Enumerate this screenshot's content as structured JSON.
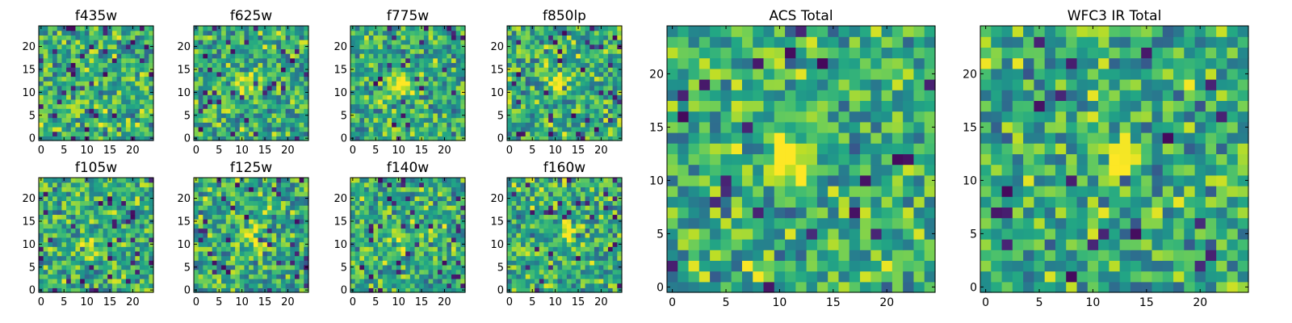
{
  "chart_data": [
    {
      "type": "heatmap",
      "title": "f435w",
      "colormap": "viridis",
      "grid_size": 25,
      "x_ticks": [
        0,
        5,
        10,
        15,
        20
      ],
      "y_ticks": [
        0,
        5,
        10,
        15,
        20
      ],
      "xlim": [
        0,
        24
      ],
      "ylim": [
        0,
        24
      ],
      "brightness_peak": {
        "x": 10,
        "y": 12,
        "amplitude": 0.12
      },
      "noise_seed": 11
    },
    {
      "type": "heatmap",
      "title": "f625w",
      "colormap": "viridis",
      "grid_size": 25,
      "x_ticks": [
        0,
        5,
        10,
        15,
        20
      ],
      "y_ticks": [
        0,
        5,
        10,
        15,
        20
      ],
      "xlim": [
        0,
        24
      ],
      "ylim": [
        0,
        24
      ],
      "brightness_peak": {
        "x": 11,
        "y": 12,
        "amplitude": 0.35
      },
      "noise_seed": 23
    },
    {
      "type": "heatmap",
      "title": "f775w",
      "colormap": "viridis",
      "grid_size": 25,
      "x_ticks": [
        0,
        5,
        10,
        15,
        20
      ],
      "y_ticks": [
        0,
        5,
        10,
        15,
        20
      ],
      "xlim": [
        0,
        24
      ],
      "ylim": [
        0,
        24
      ],
      "brightness_peak": {
        "x": 11,
        "y": 12,
        "amplitude": 0.45
      },
      "noise_seed": 37
    },
    {
      "type": "heatmap",
      "title": "f850lp",
      "colormap": "viridis",
      "grid_size": 25,
      "x_ticks": [
        0,
        5,
        10,
        15,
        20
      ],
      "y_ticks": [
        0,
        5,
        10,
        15,
        20
      ],
      "xlim": [
        0,
        24
      ],
      "ylim": [
        0,
        24
      ],
      "brightness_peak": {
        "x": 11,
        "y": 12,
        "amplitude": 0.35
      },
      "noise_seed": 41
    },
    {
      "type": "heatmap",
      "title": "f105w",
      "colormap": "viridis",
      "grid_size": 25,
      "x_ticks": [
        0,
        5,
        10,
        15,
        20
      ],
      "y_ticks": [
        0,
        5,
        10,
        15,
        20
      ],
      "xlim": [
        0,
        24
      ],
      "ylim": [
        0,
        24
      ],
      "brightness_peak": {
        "x": 10,
        "y": 9,
        "amplitude": 0.3
      },
      "noise_seed": 53
    },
    {
      "type": "heatmap",
      "title": "f125w",
      "colormap": "viridis",
      "grid_size": 25,
      "x_ticks": [
        0,
        5,
        10,
        15,
        20
      ],
      "y_ticks": [
        0,
        5,
        10,
        15,
        20
      ],
      "xlim": [
        0,
        24
      ],
      "ylim": [
        0,
        24
      ],
      "brightness_peak": {
        "x": 12,
        "y": 12,
        "amplitude": 0.35
      },
      "noise_seed": 67
    },
    {
      "type": "heatmap",
      "title": "f140w",
      "colormap": "viridis",
      "grid_size": 25,
      "x_ticks": [
        0,
        5,
        10,
        15,
        20
      ],
      "y_ticks": [
        0,
        5,
        10,
        15,
        20
      ],
      "xlim": [
        0,
        24
      ],
      "ylim": [
        0,
        24
      ],
      "brightness_peak": {
        "x": 11,
        "y": 11,
        "amplitude": 0.3
      },
      "noise_seed": 79
    },
    {
      "type": "heatmap",
      "title": "f160w",
      "colormap": "viridis",
      "grid_size": 25,
      "x_ticks": [
        0,
        5,
        10,
        15,
        20
      ],
      "y_ticks": [
        0,
        5,
        10,
        15,
        20
      ],
      "xlim": [
        0,
        24
      ],
      "ylim": [
        0,
        24
      ],
      "brightness_peak": {
        "x": 13,
        "y": 12,
        "amplitude": 0.4
      },
      "noise_seed": 89
    },
    {
      "type": "heatmap",
      "title": "ACS Total",
      "colormap": "viridis",
      "grid_size": 25,
      "x_ticks": [
        0,
        5,
        10,
        15,
        20
      ],
      "y_ticks": [
        0,
        5,
        10,
        15,
        20
      ],
      "xlim": [
        0,
        24
      ],
      "ylim": [
        0,
        24
      ],
      "brightness_peak": {
        "x": 11,
        "y": 12,
        "amplitude": 0.55
      },
      "noise_seed": 97
    },
    {
      "type": "heatmap",
      "title": "WFC3 IR Total",
      "colormap": "viridis",
      "grid_size": 25,
      "x_ticks": [
        0,
        5,
        10,
        15,
        20
      ],
      "y_ticks": [
        0,
        5,
        10,
        15,
        20
      ],
      "xlim": [
        0,
        24
      ],
      "ylim": [
        0,
        24
      ],
      "brightness_peak": {
        "x": 12,
        "y": 12,
        "amplitude": 0.55
      },
      "noise_seed": 101
    }
  ]
}
